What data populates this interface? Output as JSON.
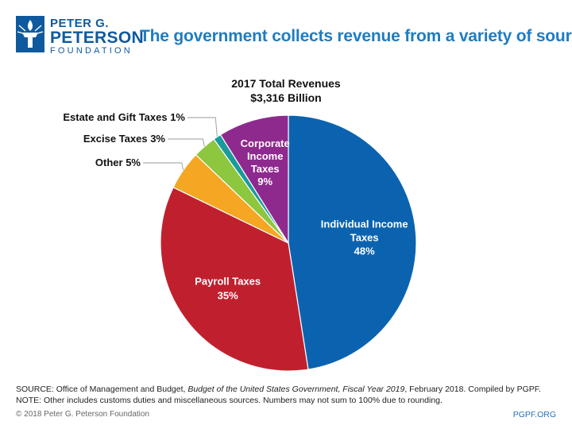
{
  "logo": {
    "line1": "PETER G.",
    "line2": "PETERSON",
    "line3": "FOUNDATION"
  },
  "title": "The government collects revenue from a variety of sources",
  "chart_data": {
    "type": "pie",
    "title_line1": "2017 Total Revenues",
    "title_line2": "$3,316 Billion",
    "slices": [
      {
        "name": "Individual Income Taxes",
        "value": 48,
        "label_lines": [
          "Individual Income",
          "Taxes",
          "48%"
        ],
        "color": "#0b63b0",
        "label_position": "inside"
      },
      {
        "name": "Payroll Taxes",
        "value": 35,
        "label_lines": [
          "Payroll Taxes",
          "35%"
        ],
        "color": "#c0202e",
        "label_position": "inside"
      },
      {
        "name": "Other",
        "value": 5,
        "label_lines": [
          "Other 5%"
        ],
        "color": "#f5a623",
        "label_position": "outside"
      },
      {
        "name": "Excise Taxes",
        "value": 3,
        "label_lines": [
          "Excise Taxes 3%"
        ],
        "color": "#8dc63f",
        "label_position": "outside"
      },
      {
        "name": "Estate and Gift Taxes",
        "value": 1,
        "label_lines": [
          "Estate and Gift Taxes 1%"
        ],
        "color": "#1a9a9a",
        "label_position": "outside"
      },
      {
        "name": "Corporate Income Taxes",
        "value": 9,
        "label_lines": [
          "Corporate",
          "Income",
          "Taxes",
          "9%"
        ],
        "color": "#8e2a8e",
        "label_position": "inside"
      }
    ]
  },
  "source": {
    "prefix": "SOURCE: Office of Management and Budget, ",
    "italic": "Budget of the United States Government, Fiscal Year 2019",
    "suffix": ", February 2018. Compiled by PGPF.",
    "note": "NOTE: Other includes customs duties and miscellaneous sources. Numbers may not sum to 100% due to rounding."
  },
  "footer": {
    "copyright": "© 2018 Peter G. Peterson Foundation",
    "site": "PGPF.ORG"
  }
}
